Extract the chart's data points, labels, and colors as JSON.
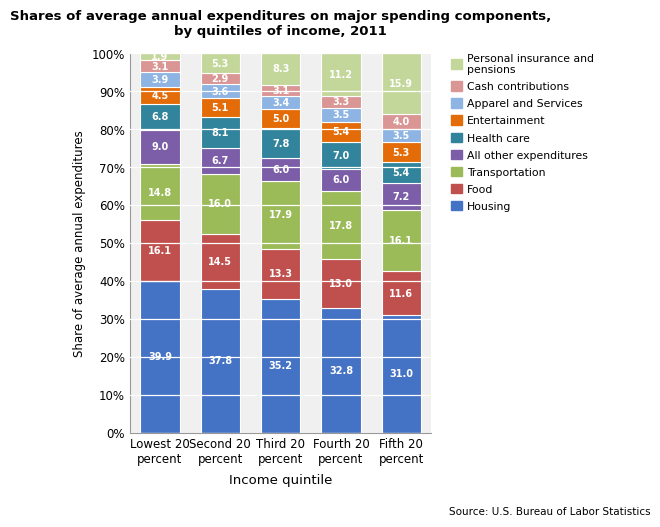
{
  "title": "Shares of average annual expenditures on major spending components,\nby quintiles of income, 2011",
  "xlabel": "Income quintile",
  "ylabel": "Share of average annual expenditures",
  "source": "Source: U.S. Bureau of Labor Statistics",
  "categories": [
    "Lowest 20\npercent",
    "Second 20\npercent",
    "Third 20\npercent",
    "Fourth 20\npercent",
    "Fifth 20\npercent"
  ],
  "series": [
    {
      "name": "Housing",
      "values": [
        39.9,
        37.8,
        35.2,
        32.8,
        31.0
      ],
      "color": "#4472C4"
    },
    {
      "name": "Food",
      "values": [
        16.1,
        14.5,
        13.3,
        13.0,
        11.6
      ],
      "color": "#C0504D"
    },
    {
      "name": "Transportation",
      "values": [
        14.8,
        16.0,
        17.9,
        17.8,
        16.1
      ],
      "color": "#9BBB59"
    },
    {
      "name": "All other expenditures",
      "values": [
        9.0,
        6.7,
        6.0,
        6.0,
        7.2
      ],
      "color": "#7B5EA7"
    },
    {
      "name": "Health care",
      "values": [
        6.8,
        8.1,
        7.8,
        7.0,
        5.4
      ],
      "color": "#31849B"
    },
    {
      "name": "Entertainment",
      "values": [
        4.5,
        5.1,
        5.0,
        5.4,
        5.3
      ],
      "color": "#E36C09"
    },
    {
      "name": "Apparel and Services",
      "values": [
        3.9,
        3.6,
        3.4,
        3.5,
        3.5
      ],
      "color": "#8DB4E2"
    },
    {
      "name": "Cash contributions",
      "values": [
        3.1,
        2.9,
        3.1,
        3.3,
        4.0
      ],
      "color": "#DA9694"
    },
    {
      "name": "Personal insurance and\npensions",
      "values": [
        1.9,
        5.3,
        8.3,
        11.2,
        15.9
      ],
      "color": "#C4D79B"
    }
  ],
  "ylim": [
    0,
    100
  ],
  "yticks": [
    0,
    10,
    20,
    30,
    40,
    50,
    60,
    70,
    80,
    90,
    100
  ],
  "ytick_labels": [
    "0%",
    "10%",
    "20%",
    "30%",
    "40%",
    "50%",
    "60%",
    "70%",
    "80%",
    "90%",
    "100%"
  ]
}
